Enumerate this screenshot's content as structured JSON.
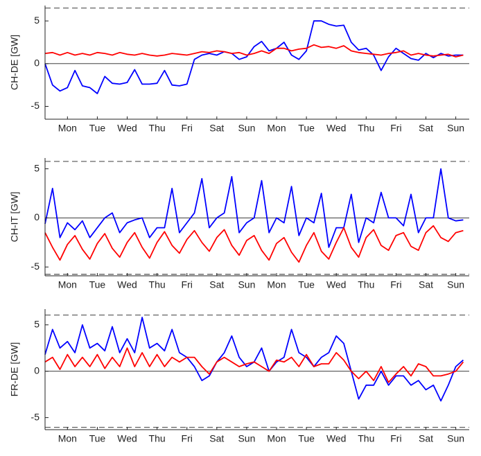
{
  "chart_data": [
    {
      "type": "line",
      "ylabel": "CH-DE [GW]",
      "xlim": [
        0,
        14.2
      ],
      "ylim": [
        -6.5,
        6.8
      ],
      "yticks": [
        -5,
        0,
        5
      ],
      "xticks": [
        {
          "value": 0.75,
          "label": "Mon"
        },
        {
          "value": 1.75,
          "label": "Tue"
        },
        {
          "value": 2.75,
          "label": "Wed"
        },
        {
          "value": 3.75,
          "label": "Thu"
        },
        {
          "value": 4.75,
          "label": "Fri"
        },
        {
          "value": 5.75,
          "label": "Sat"
        },
        {
          "value": 6.75,
          "label": "Sun"
        },
        {
          "value": 7.75,
          "label": "Mon"
        },
        {
          "value": 8.75,
          "label": "Tue"
        },
        {
          "value": 9.75,
          "label": "Wed"
        },
        {
          "value": 10.75,
          "label": "Thu"
        },
        {
          "value": 11.75,
          "label": "Fri"
        },
        {
          "value": 12.75,
          "label": "Sat"
        },
        {
          "value": 13.75,
          "label": "Sun"
        }
      ],
      "hlines": [
        {
          "value": 6.5,
          "style": "dashed"
        },
        {
          "value": -6.5,
          "style": "dashed"
        },
        {
          "value": 0,
          "style": "solid"
        }
      ],
      "x": [
        0,
        0.25,
        0.5,
        0.75,
        1,
        1.25,
        1.5,
        1.75,
        2,
        2.25,
        2.5,
        2.75,
        3,
        3.25,
        3.5,
        3.75,
        4,
        4.25,
        4.5,
        4.75,
        5,
        5.25,
        5.5,
        5.75,
        6,
        6.25,
        6.5,
        6.75,
        7,
        7.25,
        7.5,
        7.75,
        8,
        8.25,
        8.5,
        8.75,
        9,
        9.25,
        9.5,
        9.75,
        10,
        10.25,
        10.5,
        10.75,
        11,
        11.25,
        11.5,
        11.75,
        12,
        12.25,
        12.5,
        12.75,
        13,
        13.25,
        13.5,
        13.75,
        14
      ],
      "series": [
        {
          "color": "#0000ff",
          "values": [
            0,
            -2.5,
            -3.2,
            -2.8,
            -0.8,
            -2.6,
            -2.8,
            -3.5,
            -1.5,
            -2.3,
            -2.4,
            -2.2,
            -0.7,
            -2.4,
            -2.4,
            -2.3,
            -0.8,
            -2.5,
            -2.6,
            -2.4,
            0.5,
            1.0,
            1.2,
            1.0,
            1.4,
            1.2,
            0.5,
            0.8,
            2.0,
            2.6,
            1.5,
            1.8,
            2.5,
            1.0,
            0.5,
            1.5,
            5.0,
            5.0,
            4.6,
            4.4,
            4.5,
            2.5,
            1.6,
            1.8,
            1.0,
            -0.8,
            0.8,
            1.8,
            1.2,
            0.6,
            0.4,
            1.2,
            0.7,
            1.2,
            0.9,
            1.0,
            1.0
          ]
        },
        {
          "color": "#ff0000",
          "values": [
            1.2,
            1.3,
            1.0,
            1.3,
            1.0,
            1.2,
            1.0,
            1.3,
            1.2,
            1.0,
            1.3,
            1.1,
            1.0,
            1.2,
            1.0,
            0.9,
            1.0,
            1.2,
            1.1,
            1.0,
            1.2,
            1.4,
            1.3,
            1.5,
            1.4,
            1.2,
            1.3,
            1.0,
            1.2,
            1.5,
            1.2,
            1.8,
            1.8,
            1.5,
            1.7,
            1.8,
            2.2,
            1.9,
            2.0,
            1.8,
            2.1,
            1.5,
            1.3,
            1.2,
            1.1,
            1.0,
            1.2,
            1.3,
            1.5,
            1.0,
            1.2,
            1.0,
            0.9,
            1.0,
            1.1,
            0.8,
            1.0
          ]
        }
      ]
    },
    {
      "type": "line",
      "ylabel": "CH-IT [GW]",
      "xlim": [
        0,
        14.2
      ],
      "ylim": [
        -5.9,
        6.1
      ],
      "yticks": [
        -5,
        0,
        5
      ],
      "xticks": [
        {
          "value": 0.75,
          "label": "Mon"
        },
        {
          "value": 1.75,
          "label": "Tue"
        },
        {
          "value": 2.75,
          "label": "Wed"
        },
        {
          "value": 3.75,
          "label": "Thu"
        },
        {
          "value": 4.75,
          "label": "Fri"
        },
        {
          "value": 5.75,
          "label": "Sat"
        },
        {
          "value": 6.75,
          "label": "Sun"
        },
        {
          "value": 7.75,
          "label": "Mon"
        },
        {
          "value": 8.75,
          "label": "Tue"
        },
        {
          "value": 9.75,
          "label": "Wed"
        },
        {
          "value": 10.75,
          "label": "Thu"
        },
        {
          "value": 11.75,
          "label": "Fri"
        },
        {
          "value": 12.75,
          "label": "Sat"
        },
        {
          "value": 13.75,
          "label": "Sun"
        }
      ],
      "hlines": [
        {
          "value": 5.75,
          "style": "dashed"
        },
        {
          "value": -5.75,
          "style": "dashed"
        },
        {
          "value": 0,
          "style": "solid"
        }
      ],
      "x": [
        0,
        0.25,
        0.5,
        0.75,
        1,
        1.25,
        1.5,
        1.75,
        2,
        2.25,
        2.5,
        2.75,
        3,
        3.25,
        3.5,
        3.75,
        4,
        4.25,
        4.5,
        4.75,
        5,
        5.25,
        5.5,
        5.75,
        6,
        6.25,
        6.5,
        6.75,
        7,
        7.25,
        7.5,
        7.75,
        8,
        8.25,
        8.5,
        8.75,
        9,
        9.25,
        9.5,
        9.75,
        10,
        10.25,
        10.5,
        10.75,
        11,
        11.25,
        11.5,
        11.75,
        12,
        12.25,
        12.5,
        12.75,
        13,
        13.25,
        13.5,
        13.75,
        14
      ],
      "series": [
        {
          "color": "#0000ff",
          "values": [
            -0.6,
            3.0,
            -2.0,
            -0.5,
            -1.2,
            -0.3,
            -2.0,
            -1.0,
            0.0,
            0.5,
            -1.5,
            -0.5,
            -0.2,
            0.0,
            -2.0,
            -1.0,
            -1.0,
            3.0,
            -1.5,
            -0.5,
            0.5,
            4.0,
            -1.0,
            0.0,
            0.5,
            4.2,
            -1.5,
            -0.5,
            0.0,
            3.8,
            -1.5,
            0.0,
            -0.5,
            3.2,
            -1.8,
            0.0,
            -0.5,
            2.5,
            -3.0,
            -1.0,
            -1.0,
            2.4,
            -2.5,
            0.0,
            -0.5,
            2.6,
            0.0,
            0.0,
            -0.8,
            2.4,
            -1.5,
            0.0,
            0.0,
            5.0,
            0.0,
            -0.3,
            -0.2
          ]
        },
        {
          "color": "#ff0000",
          "values": [
            -1.5,
            -3.0,
            -4.3,
            -2.7,
            -1.8,
            -3.2,
            -4.2,
            -2.6,
            -1.6,
            -3.1,
            -4.0,
            -2.5,
            -1.5,
            -3.0,
            -4.1,
            -2.5,
            -1.4,
            -2.8,
            -3.6,
            -2.2,
            -1.3,
            -2.5,
            -3.4,
            -2.0,
            -1.2,
            -2.8,
            -3.8,
            -2.3,
            -1.8,
            -3.3,
            -4.3,
            -2.6,
            -2.0,
            -3.5,
            -4.5,
            -2.8,
            -1.5,
            -3.4,
            -4.2,
            -2.5,
            -1.0,
            -3.0,
            -4.0,
            -2.0,
            -1.2,
            -2.8,
            -3.3,
            -1.8,
            -1.5,
            -2.9,
            -3.3,
            -1.5,
            -0.8,
            -2.0,
            -2.4,
            -1.5,
            -1.3
          ]
        }
      ]
    },
    {
      "type": "line",
      "ylabel": "FR-DE [GW]",
      "xlim": [
        0,
        14.2
      ],
      "ylim": [
        -6.3,
        6.7
      ],
      "yticks": [
        -5,
        0,
        5
      ],
      "xticks": [
        {
          "value": 0.75,
          "label": "Mon"
        },
        {
          "value": 1.75,
          "label": "Tue"
        },
        {
          "value": 2.75,
          "label": "Wed"
        },
        {
          "value": 3.75,
          "label": "Thu"
        },
        {
          "value": 4.75,
          "label": "Fri"
        },
        {
          "value": 5.75,
          "label": "Sat"
        },
        {
          "value": 6.75,
          "label": "Sun"
        },
        {
          "value": 7.75,
          "label": "Mon"
        },
        {
          "value": 8.75,
          "label": "Tue"
        },
        {
          "value": 9.75,
          "label": "Wed"
        },
        {
          "value": 10.75,
          "label": "Thu"
        },
        {
          "value": 11.75,
          "label": "Fri"
        },
        {
          "value": 12.75,
          "label": "Sat"
        },
        {
          "value": 13.75,
          "label": "Sun"
        }
      ],
      "hlines": [
        {
          "value": 6.05,
          "style": "dashed"
        },
        {
          "value": -6.05,
          "style": "dashed"
        },
        {
          "value": 0,
          "style": "solid"
        }
      ],
      "x": [
        0,
        0.25,
        0.5,
        0.75,
        1,
        1.25,
        1.5,
        1.75,
        2,
        2.25,
        2.5,
        2.75,
        3,
        3.25,
        3.5,
        3.75,
        4,
        4.25,
        4.5,
        4.75,
        5,
        5.25,
        5.5,
        5.75,
        6,
        6.25,
        6.5,
        6.75,
        7,
        7.25,
        7.5,
        7.75,
        8,
        8.25,
        8.5,
        8.75,
        9,
        9.25,
        9.5,
        9.75,
        10,
        10.25,
        10.5,
        10.75,
        11,
        11.25,
        11.5,
        11.75,
        12,
        12.25,
        12.5,
        12.75,
        13,
        13.25,
        13.5,
        13.75,
        14
      ],
      "series": [
        {
          "color": "#0000ff",
          "values": [
            1.8,
            4.5,
            2.5,
            3.2,
            2.0,
            5.0,
            2.5,
            3.0,
            2.2,
            4.8,
            2.0,
            3.5,
            2.0,
            5.8,
            2.5,
            3.0,
            2.2,
            4.5,
            2.0,
            1.5,
            0.5,
            -1.0,
            -0.5,
            1.0,
            2.0,
            3.8,
            1.5,
            0.5,
            1.0,
            2.5,
            0.0,
            1.0,
            1.5,
            4.5,
            2.0,
            1.5,
            0.5,
            1.5,
            2.0,
            3.8,
            3.0,
            0.0,
            -3.0,
            -1.5,
            -1.5,
            0.0,
            -1.5,
            -0.5,
            -0.5,
            -1.5,
            -1.0,
            -2.0,
            -1.5,
            -3.2,
            -1.5,
            0.5,
            1.2
          ]
        },
        {
          "color": "#ff0000",
          "values": [
            1.0,
            1.5,
            0.2,
            1.8,
            0.5,
            1.5,
            0.5,
            1.8,
            0.3,
            1.5,
            0.5,
            2.5,
            0.5,
            2.0,
            0.5,
            1.8,
            0.5,
            1.5,
            1.0,
            1.5,
            1.5,
            0.5,
            -0.3,
            1.0,
            1.5,
            1.0,
            0.5,
            0.8,
            1.0,
            0.5,
            0.0,
            1.2,
            1.0,
            1.5,
            0.5,
            1.8,
            0.5,
            0.8,
            0.8,
            2.0,
            1.2,
            0.0,
            -0.8,
            0.0,
            -1.0,
            0.5,
            -1.2,
            -0.3,
            0.5,
            -0.5,
            0.8,
            0.5,
            -0.5,
            -0.5,
            -0.3,
            0.0,
            1.0
          ]
        }
      ]
    }
  ]
}
